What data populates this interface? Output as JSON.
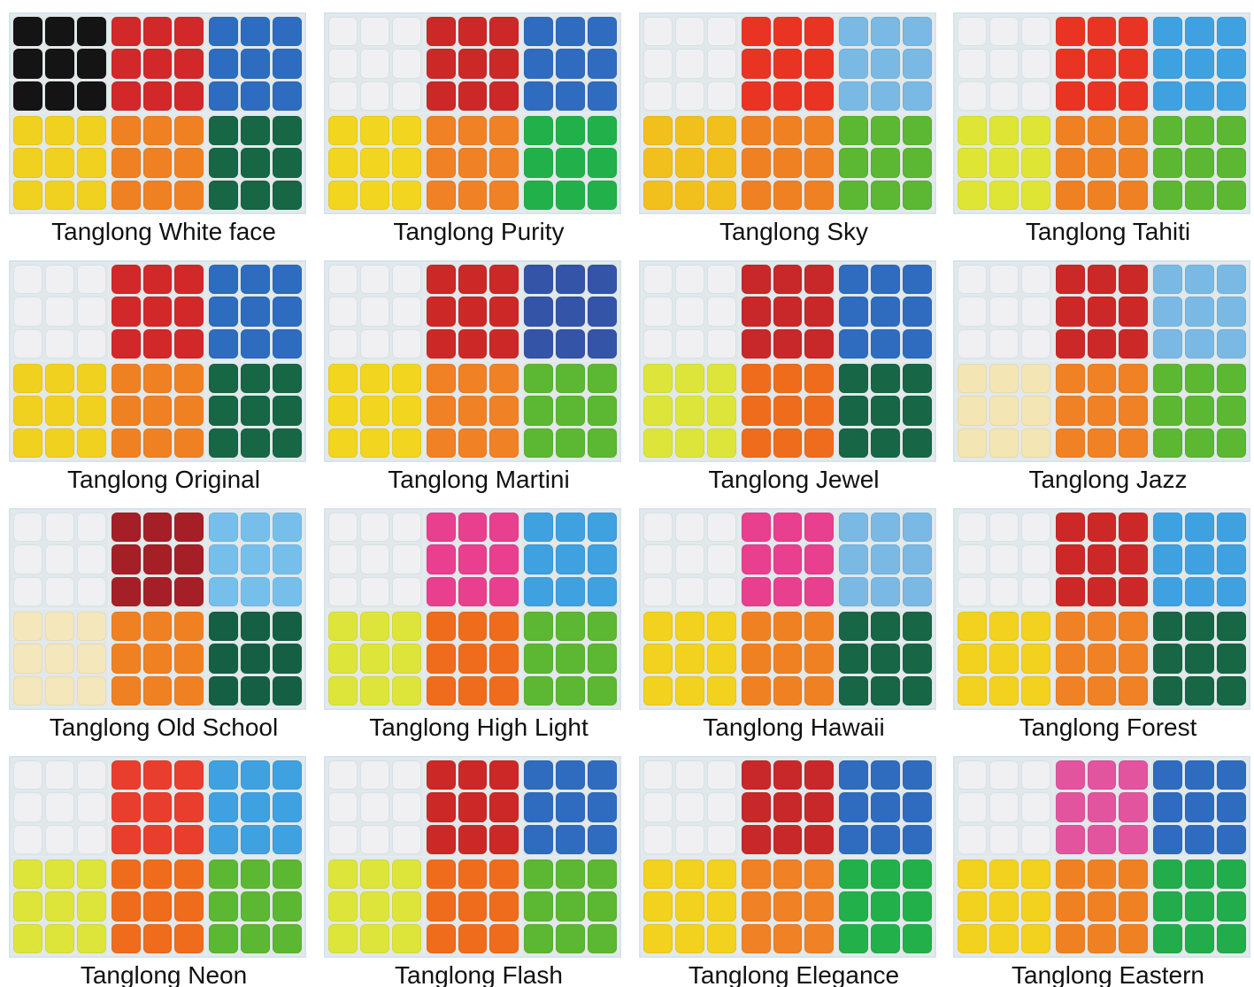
{
  "sets": [
    {
      "name": "Tanglong White face",
      "faces": [
        "#141414",
        "#d2282a",
        "#2d6cbf",
        "#f1d11f",
        "#f08122",
        "#176646"
      ]
    },
    {
      "name": "Tanglong Purity",
      "faces": [
        "#f0f0f2",
        "#cc2828",
        "#2f6cc0",
        "#f1d51f",
        "#f08125",
        "#22b04b"
      ]
    },
    {
      "name": "Tanglong Sky",
      "faces": [
        "#f0f0f2",
        "#e93424",
        "#7ab9e3",
        "#f2c01d",
        "#f08122",
        "#5cb732"
      ]
    },
    {
      "name": "Tanglong Tahiti",
      "faces": [
        "#f0f0f2",
        "#e93424",
        "#3fa1e0",
        "#dee535",
        "#f08122",
        "#5cb732"
      ]
    },
    {
      "name": "Tanglong Original",
      "faces": [
        "#f0f0f2",
        "#d2282a",
        "#2d6cbf",
        "#f1d11f",
        "#f08122",
        "#176646"
      ]
    },
    {
      "name": "Tanglong Martini",
      "faces": [
        "#f0f0f2",
        "#cc2828",
        "#3454a8",
        "#f1d51f",
        "#f08125",
        "#5cb732"
      ]
    },
    {
      "name": "Tanglong Jewel",
      "faces": [
        "#f0f0f2",
        "#c8282a",
        "#2f6cc0",
        "#dde53a",
        "#ef6c1c",
        "#176646"
      ]
    },
    {
      "name": "Tanglong Jazz",
      "faces": [
        "#f0f0f2",
        "#cc2828",
        "#7ab9e3",
        "#f4e5b5",
        "#f08125",
        "#5cb732"
      ]
    },
    {
      "name": "Tanglong Old School",
      "faces": [
        "#f0f0f2",
        "#a51f27",
        "#76bfea",
        "#f5e7bc",
        "#f08122",
        "#156045"
      ]
    },
    {
      "name": "Tanglong High Light",
      "faces": [
        "#f0f0f2",
        "#e83f8e",
        "#3fa1e0",
        "#dde53a",
        "#ef6c1c",
        "#5cb732"
      ]
    },
    {
      "name": "Tanglong Hawaii",
      "faces": [
        "#f0f0f2",
        "#e83f8e",
        "#7ab9e3",
        "#f2d11f",
        "#f08122",
        "#176646"
      ]
    },
    {
      "name": "Tanglong Forest",
      "faces": [
        "#f0f0f2",
        "#cc2828",
        "#3fa1e0",
        "#f2d11f",
        "#f08125",
        "#176646"
      ]
    },
    {
      "name": "Tanglong Neon",
      "faces": [
        "#f0f0f2",
        "#e93d2e",
        "#3fa1e0",
        "#dde53a",
        "#ef6c1c",
        "#5cb732"
      ]
    },
    {
      "name": "Tanglong Flash",
      "faces": [
        "#f0f0f2",
        "#cc2828",
        "#2f6cc0",
        "#dde53a",
        "#ef6c1c",
        "#5cb732"
      ]
    },
    {
      "name": "Tanglong Elegance",
      "faces": [
        "#f0f0f2",
        "#c8282a",
        "#2f6cc0",
        "#f2d11f",
        "#f08125",
        "#22b04b"
      ]
    },
    {
      "name": "Tanglong Eastern",
      "faces": [
        "#f0f0f2",
        "#e3549f",
        "#2f6cc0",
        "#f2d11f",
        "#f08122",
        "#22ac4b"
      ]
    }
  ]
}
